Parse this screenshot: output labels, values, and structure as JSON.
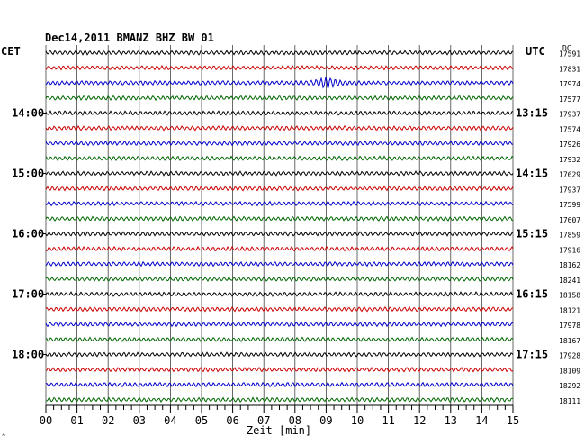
{
  "chart_data": {
    "type": "line",
    "title": "Dec14,2011   BMANZ BHZ BW 01",
    "left_label": "CET",
    "right_label": "UTC",
    "right_column_header": "DC",
    "xlabel": "Zeit [min]",
    "xlim": [
      0,
      15
    ],
    "x_ticks": [
      "00",
      "01",
      "02",
      "03",
      "04",
      "05",
      "06",
      "07",
      "08",
      "09",
      "10",
      "11",
      "12",
      "13",
      "14",
      "15"
    ],
    "grid": true,
    "trace_colors": [
      "#000000",
      "#cc0000",
      "#0000cc",
      "#006600"
    ],
    "traces": [
      {
        "dc": "17591",
        "left_time": "",
        "right_time": "",
        "event": null
      },
      {
        "dc": "17831",
        "left_time": "",
        "right_time": "",
        "event": null
      },
      {
        "dc": "17974",
        "left_time": "",
        "right_time": "",
        "event": {
          "at_min": 9.0,
          "amplitude": 5
        }
      },
      {
        "dc": "17577",
        "left_time": "",
        "right_time": "",
        "event": null
      },
      {
        "dc": "17937",
        "left_time": "14:00",
        "right_time": "13:15",
        "event": null
      },
      {
        "dc": "17574",
        "left_time": "",
        "right_time": "",
        "event": null
      },
      {
        "dc": "17926",
        "left_time": "",
        "right_time": "",
        "event": null
      },
      {
        "dc": "17932",
        "left_time": "",
        "right_time": "",
        "event": null
      },
      {
        "dc": "17629",
        "left_time": "15:00",
        "right_time": "14:15",
        "event": null
      },
      {
        "dc": "17937",
        "left_time": "",
        "right_time": "",
        "event": null
      },
      {
        "dc": "17599",
        "left_time": "",
        "right_time": "",
        "event": null
      },
      {
        "dc": "17607",
        "left_time": "",
        "right_time": "",
        "event": null
      },
      {
        "dc": "17859",
        "left_time": "16:00",
        "right_time": "15:15",
        "event": null
      },
      {
        "dc": "17916",
        "left_time": "",
        "right_time": "",
        "event": null
      },
      {
        "dc": "18162",
        "left_time": "",
        "right_time": "",
        "event": null
      },
      {
        "dc": "18241",
        "left_time": "",
        "right_time": "",
        "event": null
      },
      {
        "dc": "18158",
        "left_time": "17:00",
        "right_time": "16:15",
        "event": null
      },
      {
        "dc": "18121",
        "left_time": "",
        "right_time": "",
        "event": null
      },
      {
        "dc": "17978",
        "left_time": "",
        "right_time": "",
        "event": null
      },
      {
        "dc": "18167",
        "left_time": "",
        "right_time": "",
        "event": null
      },
      {
        "dc": "17928",
        "left_time": "18:00",
        "right_time": "17:15",
        "event": null
      },
      {
        "dc": "18109",
        "left_time": "",
        "right_time": "",
        "event": null
      },
      {
        "dc": "18292",
        "left_time": "",
        "right_time": "",
        "event": null
      },
      {
        "dc": "18111",
        "left_time": "",
        "right_time": "",
        "event": null
      }
    ]
  }
}
